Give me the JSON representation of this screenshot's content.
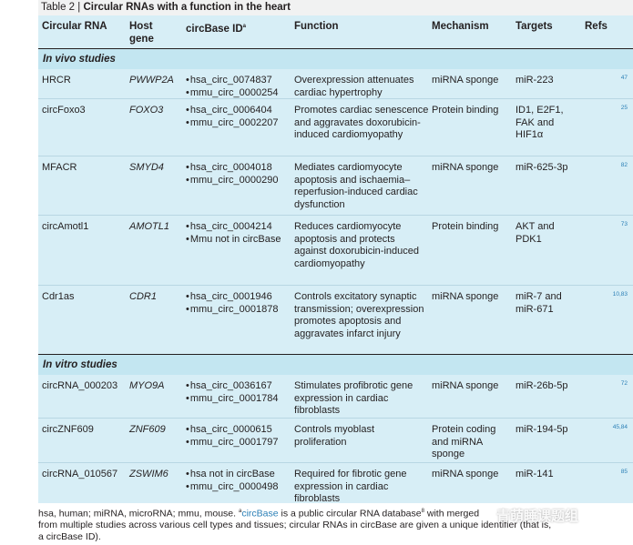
{
  "caption": {
    "label": "Table 2 | ",
    "title": "Circular RNAs with a function in the heart"
  },
  "headers": {
    "rna": "Circular RNA",
    "host": "Host gene",
    "id": "circBase ID",
    "id_sup": "a",
    "function": "Function",
    "mechanism": "Mechanism",
    "targets": "Targets",
    "refs": "Refs"
  },
  "sections": {
    "in_vivo": "In vivo studies",
    "in_vitro": "In vitro studies"
  },
  "rows": [
    {
      "rna": "HRCR",
      "host": "PWWP2A",
      "ids": [
        "hsa_circ_0074837",
        "mmu_circ_0000254"
      ],
      "function": "Overexpression attenuates cardiac hypertrophy",
      "mechanism": "miRNA sponge",
      "targets": "miR-223",
      "refs": "47"
    },
    {
      "rna": "circFoxo3",
      "host": "FOXO3",
      "ids": [
        "hsa_circ_0006404",
        "mmu_circ_0002207"
      ],
      "function": "Promotes cardiac senescence and aggravates doxorubicin-induced cardiomyopathy",
      "mechanism": "Protein binding",
      "targets": "ID1, E2F1, FAK and HIF1α",
      "refs": "25"
    },
    {
      "rna": "MFACR",
      "host": "SMYD4",
      "ids": [
        "hsa_circ_0004018",
        "mmu_circ_0000290"
      ],
      "function": "Mediates cardiomyocyte apoptosis and ischaemia–reperfusion-induced cardiac dysfunction",
      "mechanism": "miRNA sponge",
      "targets": "miR-625-3p",
      "refs": "82"
    },
    {
      "rna": "circAmotl1",
      "host": "AMOTL1",
      "ids": [
        "hsa_circ_0004214",
        "Mmu not in circBase"
      ],
      "function": "Reduces cardiomyocyte apoptosis and protects against doxorubicin-induced cardiomyopathy",
      "mechanism": "Protein binding",
      "targets": "AKT and PDK1",
      "refs": "73"
    },
    {
      "rna": "Cdr1as",
      "host": "CDR1",
      "ids": [
        "hsa_circ_0001946",
        "mmu_circ_0001878"
      ],
      "function": "Controls excitatory synaptic transmission; overexpression promotes apoptosis and aggravates infarct injury",
      "mechanism": "miRNA sponge",
      "targets": "miR-7 and miR-671",
      "refs": "10,83"
    },
    {
      "rna": "circRNA_000203",
      "host": "MYO9A",
      "ids": [
        "hsa_circ_0036167",
        "mmu_circ_0001784"
      ],
      "function": "Stimulates profibrotic gene expression in cardiac fibroblasts",
      "mechanism": "miRNA sponge",
      "targets": "miR-26b-5p",
      "refs": "72"
    },
    {
      "rna": "circZNF609",
      "host": "ZNF609",
      "ids": [
        "hsa_circ_0000615",
        "mmu_circ_0001797"
      ],
      "function": "Controls myoblast proliferation",
      "mechanism": "Protein coding and miRNA sponge",
      "targets": "miR-194-5p",
      "refs": "45,84"
    },
    {
      "rna": "circRNA_010567",
      "host": "ZSWIM6",
      "ids": [
        "hsa not in circBase",
        "mmu_circ_0000498"
      ],
      "function": "Required for fibrotic gene expression in cardiac fibroblasts",
      "mechanism": "miRNA sponge",
      "targets": "miR-141",
      "refs": "85"
    }
  ],
  "footnote": {
    "part1": "hsa, human; miRNA, microRNA; mmu, mouse. ",
    "sup_a": "a",
    "link": "circBase",
    "part2": " is a public circular RNA database",
    "sup_8": "8",
    "part3": " with merged ",
    "line2": "from multiple studies across various cell types and tissues; circular RNAs in circBase are given a unique identifier (that is,",
    "line3": "a circBase ID)."
  },
  "watermark": "青萌睡课题组"
}
